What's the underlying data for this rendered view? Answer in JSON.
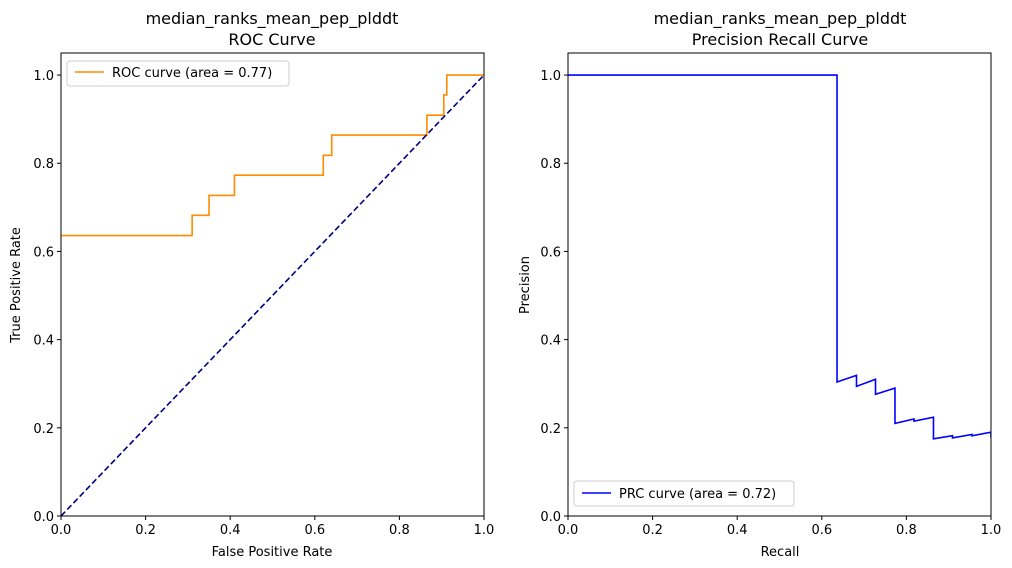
{
  "chart_data": [
    {
      "type": "line",
      "title_line1": "median_ranks_mean_pep_plddt",
      "title_line2": "ROC Curve",
      "xlabel": "False Positive Rate",
      "ylabel": "True Positive Rate",
      "xlim": [
        0.0,
        1.0
      ],
      "ylim": [
        0.0,
        1.05
      ],
      "xticks": [
        "0.0",
        "0.2",
        "0.4",
        "0.6",
        "0.8",
        "1.0"
      ],
      "yticks": [
        "0.0",
        "0.2",
        "0.4",
        "0.6",
        "0.8",
        "1.0"
      ],
      "legend_position": "upper-left",
      "series": [
        {
          "name": "ROC curve (area = 0.77)",
          "color": "#ff8c00",
          "style": "solid",
          "x": [
            0.0,
            0.31,
            0.31,
            0.35,
            0.35,
            0.41,
            0.41,
            0.62,
            0.62,
            0.64,
            0.64,
            0.865,
            0.865,
            0.905,
            0.905,
            0.912,
            0.912,
            1.0
          ],
          "y": [
            0.636,
            0.636,
            0.682,
            0.682,
            0.727,
            0.727,
            0.773,
            0.773,
            0.818,
            0.818,
            0.864,
            0.864,
            0.909,
            0.909,
            0.955,
            0.955,
            1.0,
            1.0
          ]
        },
        {
          "name": "",
          "color": "#000080",
          "style": "dashed",
          "x": [
            0.0,
            1.0
          ],
          "y": [
            0.0,
            1.0
          ]
        }
      ]
    },
    {
      "type": "line",
      "title_line1": "median_ranks_mean_pep_plddt",
      "title_line2": "Precision Recall Curve",
      "xlabel": "Recall",
      "ylabel": "Precision",
      "xlim": [
        0.0,
        1.0
      ],
      "ylim": [
        0.0,
        1.05
      ],
      "xticks": [
        "0.0",
        "0.2",
        "0.4",
        "0.6",
        "0.8",
        "1.0"
      ],
      "yticks": [
        "0.0",
        "0.2",
        "0.4",
        "0.6",
        "0.8",
        "1.0"
      ],
      "legend_position": "lower-left",
      "series": [
        {
          "name": "PRC curve (area = 0.72)",
          "color": "#0000ff",
          "style": "solid",
          "x": [
            0.0,
            0.636,
            0.636,
            0.682,
            0.682,
            0.727,
            0.727,
            0.773,
            0.773,
            0.818,
            0.818,
            0.864,
            0.864,
            0.909,
            0.909,
            0.955,
            0.955,
            1.0,
            1.0
          ],
          "y": [
            1.0,
            1.0,
            0.304,
            0.319,
            0.294,
            0.31,
            0.276,
            0.29,
            0.21,
            0.22,
            0.215,
            0.224,
            0.175,
            0.182,
            0.177,
            0.185,
            0.182,
            0.19,
            0.178
          ]
        }
      ]
    }
  ]
}
